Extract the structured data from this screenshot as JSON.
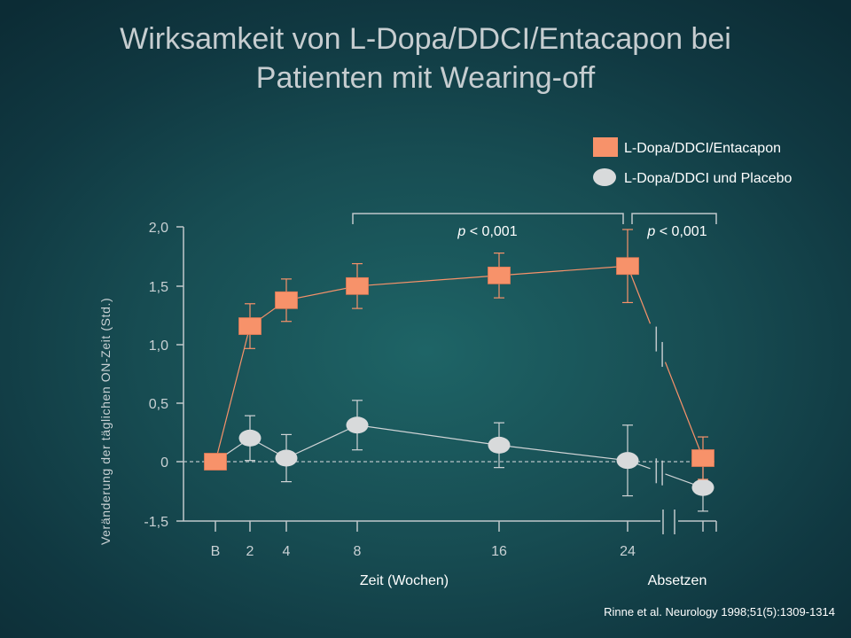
{
  "title": {
    "line1": "Wirksamkeit von L-Dopa/DDCI/Entacapon bei",
    "line2": "Patienten mit Wearing-off"
  },
  "colors": {
    "series1": "#f7926a",
    "series2": "#d8dadb",
    "axis": "#c0c8cb"
  },
  "legend": {
    "position": "top-right",
    "items": [
      {
        "label": "L-Dopa/DDCI/Entacapon",
        "marker": "square"
      },
      {
        "label": "L-Dopa/DDCI und Placebo",
        "marker": "ellipse"
      }
    ]
  },
  "citation": "Rinne et al. Neurology 1998;51(5):1309-1314",
  "chart_data": {
    "type": "line",
    "title": "Wirksamkeit von L-Dopa/DDCI/Entacapon bei Patienten mit Wearing-off",
    "xlabel": "Zeit (Wochen)",
    "xlabel_secondary": "Absetzen",
    "ylabel": "Veränderung der täglichen ON-Zeit (Std.)",
    "x_categories": [
      "B",
      "2",
      "4",
      "8",
      "16",
      "24",
      "Absetzen"
    ],
    "x_tick_labels": [
      "B",
      "2",
      "4",
      "8",
      "16",
      "24"
    ],
    "y_tick_labels": [
      "2,0",
      "1,5",
      "1,0",
      "0,5",
      "0",
      "-1,5"
    ],
    "y_ticks": [
      2.0,
      1.5,
      1.0,
      0.5,
      0
    ],
    "ylim": [
      -0.5,
      2.0
    ],
    "axis_break": {
      "y": "below 0 (labelled -1,5)",
      "x": "between 24 and Absetzen"
    },
    "grid": false,
    "reference_line": {
      "y": 0,
      "style": "dashed"
    },
    "series": [
      {
        "name": "L-Dopa/DDCI/Entacapon",
        "marker": "square",
        "values": [
          0.0,
          1.15,
          1.37,
          1.49,
          1.58,
          1.66,
          0.03
        ],
        "error": [
          null,
          0.19,
          0.18,
          0.19,
          0.19,
          0.31,
          0.18
        ]
      },
      {
        "name": "L-Dopa/DDCI und Placebo",
        "marker": "ellipse",
        "values": [
          0.0,
          0.2,
          0.03,
          0.31,
          0.14,
          0.01,
          -0.22
        ],
        "error": [
          null,
          0.19,
          0.2,
          0.21,
          0.19,
          0.3,
          0.2
        ]
      }
    ],
    "annotations": [
      {
        "text": "p < 0,001",
        "p_letter": "p",
        "rest": " < 0,001",
        "span": "weeks 8–24"
      },
      {
        "text": "p < 0,001",
        "p_letter": "p",
        "rest": " < 0,001",
        "span": "24 – Absetzen"
      }
    ]
  }
}
